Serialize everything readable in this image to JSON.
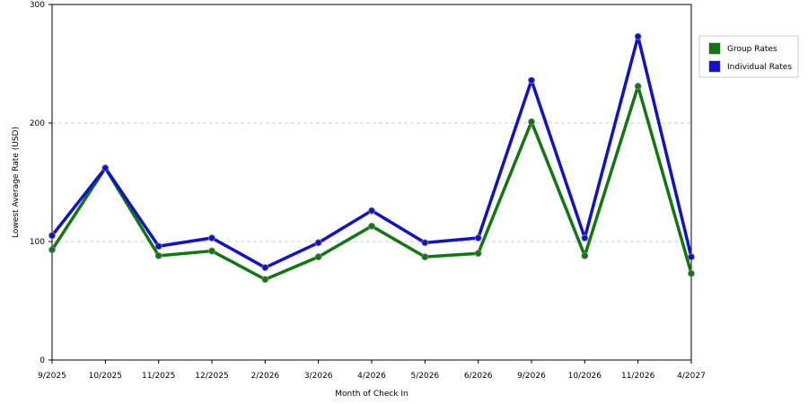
{
  "chart_data": {
    "type": "line",
    "x_label": "Month of Check In",
    "y_label": "Lowest Average Rate (USD)",
    "categories": [
      "9/2025",
      "10/2025",
      "11/2025",
      "12/2025",
      "2/2026",
      "3/2026",
      "4/2026",
      "5/2026",
      "6/2026",
      "9/2026",
      "10/2026",
      "11/2026",
      "4/2027"
    ],
    "series": [
      {
        "name": "Group Rates",
        "color": "#117711",
        "values": [
          93,
          162,
          88,
          92,
          68,
          87,
          113,
          87,
          90,
          201,
          88,
          231,
          73
        ]
      },
      {
        "name": "Individual Rates",
        "color": "#1111cc",
        "values": [
          105,
          162,
          96,
          103,
          78,
          99,
          126,
          99,
          103,
          236,
          103,
          273,
          87
        ]
      }
    ],
    "ylim": [
      0,
      300
    ],
    "yticks": [
      0,
      100,
      200,
      300
    ],
    "grid": true,
    "legend": "right"
  }
}
